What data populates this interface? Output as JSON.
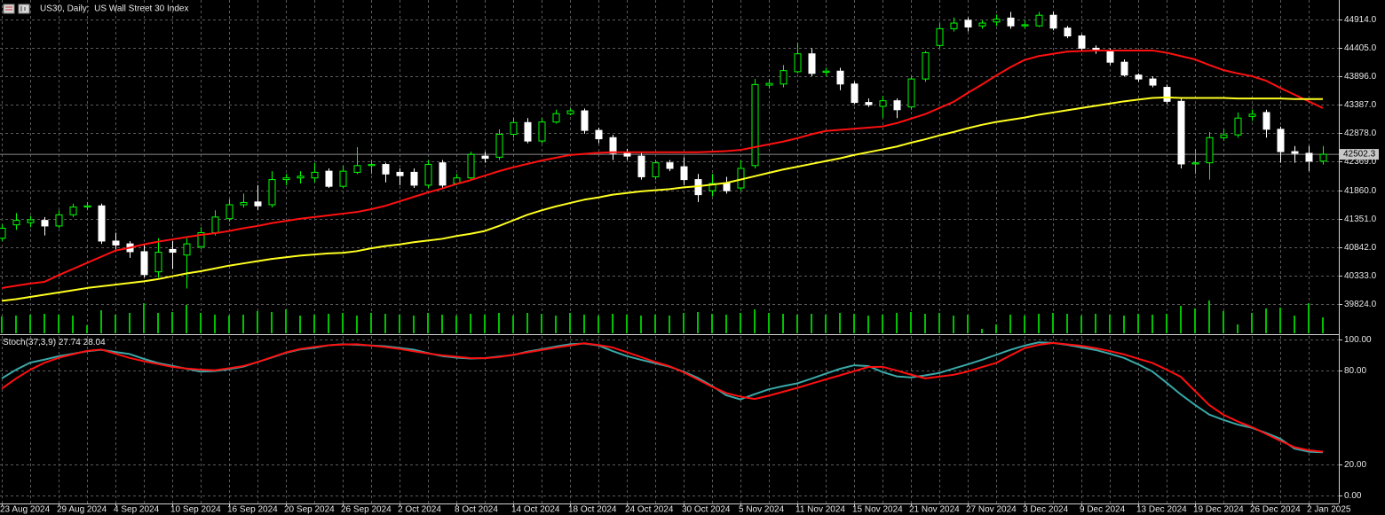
{
  "chart_data": [
    {
      "type": "candlestick",
      "title": "US30, Daily:  US Wall Street 30 Index",
      "categories": [
        "23 Aug 2024",
        null,
        null,
        null,
        "29 Aug 2024",
        null,
        null,
        null,
        "4 Sep 2024",
        null,
        null,
        null,
        "10 Sep 2024",
        null,
        null,
        null,
        "16 Sep 2024",
        null,
        null,
        null,
        "20 Sep 2024",
        null,
        null,
        null,
        "26 Sep 2024",
        null,
        null,
        null,
        "2 Oct 2024",
        null,
        null,
        null,
        "8 Oct 2024",
        null,
        null,
        null,
        "14 Oct 2024",
        null,
        null,
        null,
        "18 Oct 2024",
        null,
        null,
        null,
        "24 Oct 2024",
        null,
        null,
        null,
        "30 Oct 2024",
        null,
        null,
        null,
        "5 Nov 2024",
        null,
        null,
        null,
        "11 Nov 2024",
        null,
        null,
        null,
        "15 Nov 2024",
        null,
        null,
        null,
        "21 Nov 2024",
        null,
        null,
        null,
        "27 Nov 2024",
        null,
        null,
        null,
        "3 Dec 2024",
        null,
        null,
        null,
        "9 Dec 2024",
        null,
        null,
        null,
        "13 Dec 2024",
        null,
        null,
        null,
        "19 Dec 2024",
        null,
        null,
        null,
        "26 Dec 2024",
        null,
        null,
        null,
        "2 Jan 2025",
        null
      ],
      "open": [
        41000,
        41240,
        41280,
        41320,
        41220,
        41420,
        41560,
        41580,
        40950,
        40900,
        40760,
        40400,
        40800,
        40700,
        40850,
        41100,
        41350,
        41600,
        41650,
        41600,
        42050,
        42080,
        42080,
        42200,
        41930,
        42180,
        42300,
        42320,
        42180,
        42180,
        41950,
        42350,
        41980,
        42080,
        42470,
        42450,
        42860,
        43070,
        42740,
        43080,
        43230,
        43280,
        42930,
        42800,
        42520,
        42470,
        42100,
        42350,
        42280,
        42050,
        41850,
        41980,
        41900,
        42300,
        43740,
        43760,
        43980,
        44300,
        43970,
        43990,
        43760,
        43430,
        43360,
        43460,
        43350,
        43850,
        44450,
        44750,
        44900,
        44800,
        44870,
        44940,
        44800,
        44800,
        44990,
        44760,
        44620,
        44400,
        44350,
        44150,
        43920,
        43850,
        43700,
        43450,
        42330,
        42350,
        42800,
        42850,
        43180,
        43250,
        42950,
        42550,
        42520,
        42380
      ],
      "high": [
        41250,
        41450,
        41400,
        41380,
        41500,
        41620,
        41650,
        41620,
        41100,
        40950,
        40900,
        41000,
        40950,
        41000,
        41200,
        41500,
        41700,
        41800,
        41950,
        42200,
        42150,
        42200,
        42350,
        42250,
        42300,
        42630,
        42400,
        42350,
        42250,
        42250,
        42400,
        42400,
        42150,
        42550,
        42550,
        42950,
        43150,
        43150,
        43150,
        43300,
        43320,
        43320,
        42980,
        42850,
        42600,
        42550,
        42400,
        42400,
        42450,
        42150,
        42150,
        42100,
        42400,
        43850,
        43850,
        44100,
        44500,
        44400,
        44050,
        44050,
        43800,
        43500,
        43550,
        43500,
        43900,
        44350,
        44850,
        44950,
        44950,
        44900,
        45000,
        45050,
        44900,
        45050,
        45050,
        44800,
        44650,
        44450,
        44400,
        44200,
        43950,
        43900,
        43750,
        43500,
        42600,
        42900,
        42950,
        43250,
        43300,
        43300,
        43000,
        42650,
        42650,
        42650
      ],
      "low": [
        40950,
        41150,
        41200,
        41050,
        41180,
        41380,
        41500,
        40900,
        40800,
        40650,
        40300,
        40300,
        40450,
        40100,
        40800,
        41050,
        41300,
        41550,
        41500,
        41550,
        41950,
        41980,
        42000,
        41900,
        41900,
        42150,
        42150,
        42000,
        41950,
        41900,
        41900,
        41900,
        41950,
        42050,
        42350,
        42400,
        42800,
        42700,
        42700,
        43050,
        43200,
        42870,
        42700,
        42400,
        42400,
        42050,
        42050,
        42200,
        41950,
        41650,
        41750,
        41800,
        41850,
        42250,
        43680,
        43700,
        43950,
        43900,
        43900,
        43650,
        43400,
        43350,
        43150,
        43150,
        43300,
        43800,
        44400,
        44700,
        44700,
        44750,
        44800,
        44750,
        44750,
        44780,
        44720,
        44580,
        44350,
        44300,
        44100,
        43900,
        43800,
        43700,
        43400,
        42250,
        42150,
        42050,
        42750,
        42800,
        43100,
        42800,
        42350,
        42350,
        42200,
        42320
      ],
      "close": [
        41180,
        41320,
        41330,
        41220,
        41420,
        41560,
        41580,
        40950,
        40880,
        40760,
        40350,
        40750,
        40750,
        40900,
        41100,
        41380,
        41600,
        41640,
        41580,
        42050,
        42080,
        42110,
        42180,
        41930,
        42200,
        42300,
        42320,
        42150,
        42120,
        41950,
        42320,
        41950,
        42080,
        42500,
        42430,
        42860,
        43070,
        42740,
        43080,
        43230,
        43280,
        42930,
        42780,
        42520,
        42470,
        42100,
        42350,
        42250,
        42050,
        41780,
        41980,
        41850,
        42250,
        43750,
        43770,
        44000,
        44300,
        43950,
        43990,
        43760,
        43430,
        43390,
        43460,
        43300,
        43850,
        44320,
        44750,
        44850,
        44780,
        44850,
        44920,
        44800,
        44820,
        44990,
        44760,
        44620,
        44400,
        44380,
        44150,
        43920,
        43850,
        43740,
        43450,
        42330,
        42350,
        42800,
        42850,
        43150,
        43220,
        42950,
        42550,
        42520,
        42380,
        42502.3
      ],
      "up_color": "#00ff00",
      "down_color": "#ffffff",
      "series": [
        {
          "color": "#ff1010",
          "values": [
            40110,
            40150,
            40190,
            40220,
            40340,
            40450,
            40560,
            40670,
            40780,
            40830,
            40890,
            40940,
            40980,
            41020,
            41060,
            41090,
            41130,
            41180,
            41220,
            41270,
            41310,
            41350,
            41380,
            41410,
            41440,
            41470,
            41520,
            41580,
            41660,
            41740,
            41820,
            41890,
            41970,
            42040,
            42120,
            42200,
            42270,
            42330,
            42390,
            42440,
            42490,
            42510,
            42530,
            42540,
            42540,
            42540,
            42540,
            42540,
            42540,
            42540,
            42550,
            42560,
            42580,
            42630,
            42680,
            42730,
            42790,
            42860,
            42920,
            42940,
            42960,
            42980,
            43000,
            43060,
            43140,
            43220,
            43330,
            43440,
            43600,
            43750,
            43910,
            44060,
            44190,
            44260,
            44300,
            44340,
            44350,
            44360,
            44360,
            44360,
            44360,
            44360,
            44320,
            44260,
            44200,
            44100,
            44010,
            43950,
            43900,
            43820,
            43690,
            43570,
            43450,
            43330
          ]
        },
        {
          "color": "#ffff20",
          "values": [
            39880,
            39910,
            39950,
            39990,
            40030,
            40070,
            40110,
            40140,
            40170,
            40200,
            40230,
            40270,
            40320,
            40370,
            40410,
            40460,
            40510,
            40550,
            40590,
            40630,
            40660,
            40690,
            40710,
            40730,
            40740,
            40770,
            40820,
            40860,
            40890,
            40930,
            40960,
            40990,
            41040,
            41080,
            41130,
            41220,
            41320,
            41420,
            41500,
            41570,
            41630,
            41690,
            41730,
            41780,
            41810,
            41840,
            41860,
            41880,
            41910,
            41930,
            41960,
            41990,
            42050,
            42110,
            42170,
            42230,
            42280,
            42330,
            42380,
            42430,
            42490,
            42540,
            42590,
            42640,
            42710,
            42770,
            42840,
            42900,
            42970,
            43030,
            43080,
            43120,
            43160,
            43210,
            43250,
            43290,
            43330,
            43370,
            43410,
            43450,
            43480,
            43510,
            43520,
            43510,
            43510,
            43510,
            43510,
            43500,
            43500,
            43500,
            43500,
            43490,
            43490,
            43490
          ]
        }
      ],
      "volumes": [
        190,
        200,
        210,
        220,
        210,
        200,
        90,
        260,
        210,
        230,
        340,
        230,
        240,
        320,
        230,
        210,
        200,
        210,
        250,
        240,
        270,
        200,
        210,
        220,
        230,
        200,
        230,
        220,
        210,
        200,
        230,
        210,
        200,
        220,
        210,
        230,
        200,
        230,
        220,
        200,
        230,
        210,
        200,
        220,
        210,
        200,
        210,
        200,
        230,
        240,
        220,
        210,
        230,
        270,
        230,
        220,
        210,
        220,
        210,
        230,
        220,
        200,
        210,
        230,
        240,
        220,
        230,
        200,
        210,
        50,
        100,
        210,
        200,
        220,
        230,
        220,
        200,
        220,
        210,
        200,
        220,
        210,
        220,
        310,
        280,
        370,
        250,
        100,
        230,
        280,
        290,
        200,
        340,
        180
      ],
      "volume_color": "#00c000",
      "last_price": 42502.3,
      "ylim": [
        39300,
        45263
      ],
      "yticks": [
        {
          "value": 44914,
          "label": "44914.0"
        },
        {
          "value": 44405,
          "label": "44405.0"
        },
        {
          "value": 43896,
          "label": "43896.0"
        },
        {
          "value": 43387,
          "label": "43387.0"
        },
        {
          "value": 42878,
          "label": "42878.0"
        },
        {
          "value": 42369,
          "label": "42369.0"
        },
        {
          "value": 41860,
          "label": "41860.0"
        },
        {
          "value": 41351,
          "label": "41351.0"
        },
        {
          "value": 40842,
          "label": "40842.0"
        },
        {
          "value": 40333,
          "label": "40333.0"
        },
        {
          "value": 39824,
          "label": "39824.0"
        }
      ],
      "grid": true
    },
    {
      "type": "line",
      "title": "Stoch(37,3,9)",
      "series": [
        {
          "color": "#3aa8a8",
          "values": [
            75.1,
            80.6,
            85.2,
            87.1,
            89.3,
            90.9,
            92.5,
            93.4,
            92.0,
            90.7,
            87.6,
            84.9,
            83.1,
            81.3,
            79.4,
            79.8,
            81.0,
            82.6,
            85.6,
            88.4,
            91.5,
            93.6,
            94.7,
            96.3,
            97.0,
            96.6,
            96.2,
            95.7,
            94.6,
            93.5,
            91.3,
            89.4,
            88.4,
            87.8,
            88.1,
            89.1,
            90.1,
            92.2,
            93.8,
            95.5,
            97.0,
            97.5,
            96.2,
            92.6,
            89.4,
            87.0,
            84.8,
            82.6,
            79.4,
            75.4,
            70.3,
            64.3,
            61.6,
            65.0,
            68.1,
            70.1,
            71.9,
            74.9,
            78.1,
            81.2,
            83.5,
            83.0,
            79.2,
            76.4,
            75.7,
            77.0,
            78.6,
            81.4,
            84.1,
            87.0,
            90.2,
            93.4,
            96.1,
            98.2,
            97.8,
            96.6,
            95.0,
            93.3,
            90.9,
            88.2,
            84.1,
            79.5,
            72.3,
            64.8,
            58.1,
            51.9,
            48.5,
            45.5,
            43.4,
            40.1,
            36.4,
            30.1,
            28.1,
            27.74
          ]
        },
        {
          "color": "#ff1010",
          "values": [
            68.5,
            75.0,
            80.6,
            85.1,
            88.3,
            90.5,
            92.7,
            93.6,
            90.9,
            88.2,
            86.1,
            84.3,
            82.5,
            81.4,
            80.7,
            80.3,
            81.6,
            83.0,
            85.5,
            88.6,
            91.7,
            93.9,
            95.3,
            96.3,
            96.8,
            97.0,
            96.1,
            95.2,
            94.0,
            92.5,
            91.1,
            89.9,
            89.0,
            88.1,
            88.0,
            88.8,
            90.2,
            91.8,
            93.3,
            94.8,
            96.2,
            97.6,
            96.5,
            94.9,
            91.9,
            88.8,
            85.6,
            82.9,
            79.0,
            74.4,
            69.8,
            65.7,
            63.4,
            61.9,
            64.0,
            66.5,
            69.0,
            71.7,
            74.4,
            77.0,
            79.7,
            82.4,
            82.5,
            80.1,
            77.5,
            75.1,
            76.2,
            77.4,
            79.5,
            82.3,
            85.0,
            89.8,
            94.4,
            96.6,
            97.8,
            96.9,
            96.0,
            94.5,
            92.6,
            90.5,
            87.7,
            85.0,
            80.7,
            76.1,
            67.0,
            58.0,
            51.8,
            47.5,
            43.9,
            39.5,
            35.1,
            31.0,
            29.0,
            28.04
          ]
        }
      ],
      "ylim": [
        -5.1,
        102.3
      ],
      "yticks": [
        {
          "value": 100,
          "label": "100.00"
        },
        {
          "value": 80,
          "label": "80.00"
        },
        {
          "value": 20,
          "label": "20.00"
        },
        {
          "value": 0,
          "label": "0.00"
        }
      ],
      "grid": true
    }
  ]
}
